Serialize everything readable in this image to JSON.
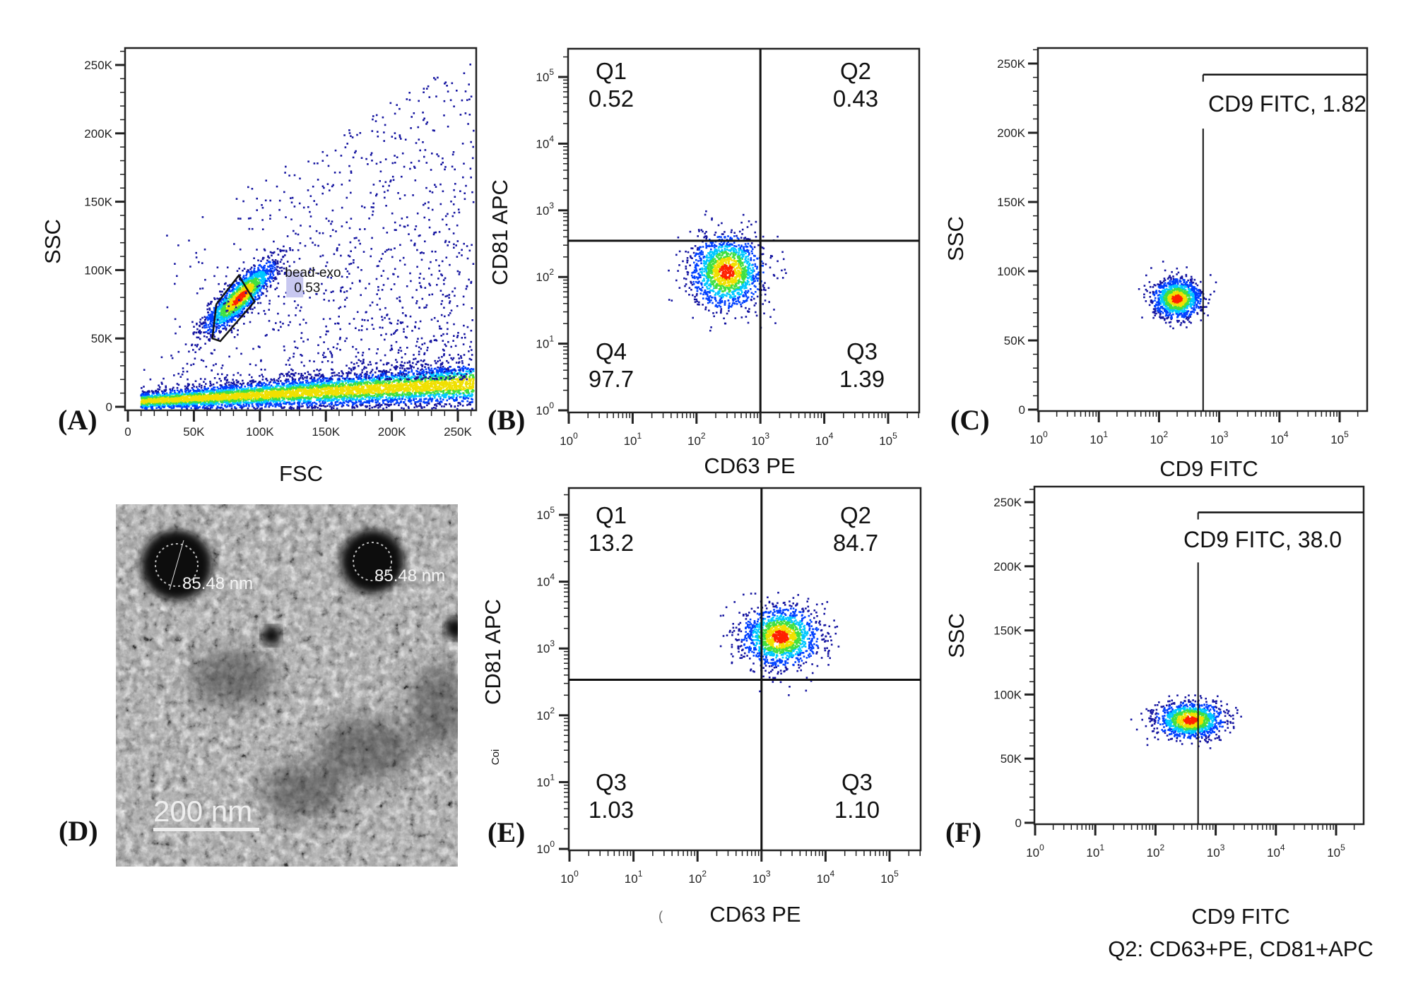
{
  "panel_labels": {
    "A": "(A)",
    "B": "(B)",
    "C": "(C)",
    "D": "(D)",
    "E": "(E)",
    "F": "(F)"
  },
  "colors": {
    "density": [
      "#1414a0",
      "#0040ff",
      "#00c8ff",
      "#40e040",
      "#f0e000",
      "#ff2000"
    ],
    "gate": "#111111",
    "gate_label_bg": "#c8c8f0"
  },
  "chart_data": [
    {
      "id": "A",
      "type": "scatter",
      "xlabel": "FSC",
      "ylabel": "SSC",
      "x_scale": "linear",
      "y_scale": "linear",
      "xlim": [
        -2000,
        264000
      ],
      "ylim": [
        -3000,
        262000
      ],
      "x_ticks": [
        {
          "v": 0,
          "label": "0"
        },
        {
          "v": 50000,
          "label": "50K"
        },
        {
          "v": 100000,
          "label": "100K"
        },
        {
          "v": 150000,
          "label": "150K"
        },
        {
          "v": 200000,
          "label": "200K"
        },
        {
          "v": 250000,
          "label": "250K"
        }
      ],
      "y_ticks": [
        {
          "v": 0,
          "label": "0"
        },
        {
          "v": 50000,
          "label": "50K"
        },
        {
          "v": 100000,
          "label": "100K"
        },
        {
          "v": 150000,
          "label": "150K"
        },
        {
          "v": 200000,
          "label": "200K"
        },
        {
          "v": 250000,
          "label": "250K"
        }
      ],
      "populations": [
        {
          "shape": "cluster",
          "x": 85000,
          "y": 80000,
          "sx": 12000,
          "sy": 11000,
          "n": 1600
        },
        {
          "shape": "band",
          "x_range": [
            10000,
            262000
          ],
          "y_start": 4000,
          "y_end": 17000,
          "spread": 6000,
          "n": 5500
        },
        {
          "shape": "scatter",
          "x_range": [
            10000,
            262000
          ],
          "y_range": [
            20000,
            258000
          ],
          "n": 1100
        }
      ],
      "gate": {
        "type": "polygon",
        "name": "bead-exo",
        "value": "0.53",
        "points": [
          [
            64000,
            50000
          ],
          [
            70000,
            48000
          ],
          [
            96000,
            77000
          ],
          [
            84000,
            96000
          ],
          [
            67000,
            75000
          ]
        ]
      }
    },
    {
      "id": "B",
      "type": "scatter",
      "xlabel": "CD63 PE",
      "ylabel": "CD81 APC",
      "x_scale": "log",
      "y_scale": "log",
      "xlim": [
        0.95,
        310000
      ],
      "ylim": [
        0.93,
        265000
      ],
      "x_ticks": [
        {
          "v": 1,
          "label": "10^0"
        },
        {
          "v": 10,
          "label": "10^1"
        },
        {
          "v": 100,
          "label": "10^2"
        },
        {
          "v": 1000,
          "label": "10^3"
        },
        {
          "v": 10000,
          "label": "10^4"
        },
        {
          "v": 100000,
          "label": "10^5"
        }
      ],
      "y_ticks": [
        {
          "v": 1,
          "label": "10^0"
        },
        {
          "v": 10,
          "label": "10^1"
        },
        {
          "v": 100,
          "label": "10^2"
        },
        {
          "v": 1000,
          "label": "10^3"
        },
        {
          "v": 10000,
          "label": "10^4"
        },
        {
          "v": 100000,
          "label": "10^5"
        }
      ],
      "populations": [
        {
          "shape": "cluster",
          "x": 300,
          "y": 120,
          "sx_decades": 0.28,
          "sy_decades": 0.27,
          "n": 1500
        }
      ],
      "gate": {
        "type": "quadrant",
        "x": 1000,
        "y": 350
      },
      "quadrants": [
        {
          "name": "Q1",
          "value": "0.52"
        },
        {
          "name": "Q2",
          "value": "0.43"
        },
        {
          "name": "Q4",
          "value": "97.7"
        },
        {
          "name": "Q3",
          "value": "1.39"
        }
      ]
    },
    {
      "id": "C",
      "type": "scatter",
      "xlabel": "CD9 FITC",
      "ylabel": "SSC",
      "x_scale": "log",
      "y_scale": "linear",
      "xlim": [
        0.95,
        250000
      ],
      "ylim": [
        -1000,
        262000
      ],
      "x_ticks": [
        {
          "v": 1,
          "label": "10^0"
        },
        {
          "v": 10,
          "label": "10^1"
        },
        {
          "v": 100,
          "label": "10^2"
        },
        {
          "v": 1000,
          "label": "10^3"
        },
        {
          "v": 10000,
          "label": "10^4"
        },
        {
          "v": 100000,
          "label": "10^5"
        }
      ],
      "y_ticks": [
        {
          "v": 0,
          "label": "0"
        },
        {
          "v": 50000,
          "label": "50K"
        },
        {
          "v": 100000,
          "label": "100K"
        },
        {
          "v": 150000,
          "label": "150K"
        },
        {
          "v": 200000,
          "label": "200K"
        },
        {
          "v": 250000,
          "label": "250K"
        }
      ],
      "populations": [
        {
          "shape": "cluster",
          "x": 200,
          "y": 80000,
          "sx_decades": 0.2,
          "sy": 7000,
          "n": 1200
        }
      ],
      "gate": {
        "type": "range",
        "x_min": 540,
        "y_top": 242000,
        "label": "CD9 FITC, 1.82"
      }
    },
    {
      "id": "E",
      "type": "scatter",
      "xlabel": "CD63 PE",
      "ylabel": "CD81 APC",
      "x_scale": "log",
      "y_scale": "log",
      "xlim": [
        0.98,
        330000
      ],
      "ylim": [
        0.99,
        300000
      ],
      "x_ticks": [
        {
          "v": 1,
          "label": "10^0"
        },
        {
          "v": 10,
          "label": "10^1"
        },
        {
          "v": 100,
          "label": "10^2"
        },
        {
          "v": 1000,
          "label": "10^3"
        },
        {
          "v": 10000,
          "label": "10^4"
        },
        {
          "v": 100000,
          "label": "10^5"
        }
      ],
      "y_ticks": [
        {
          "v": 1,
          "label": "10^0"
        },
        {
          "v": 10,
          "label": "10^1"
        },
        {
          "v": 100,
          "label": "10^2"
        },
        {
          "v": 1000,
          "label": "10^3"
        },
        {
          "v": 10000,
          "label": "10^4"
        },
        {
          "v": 100000,
          "label": "10^5"
        }
      ],
      "populations": [
        {
          "shape": "cluster",
          "x": 2000,
          "y": 1500,
          "sx_decades": 0.3,
          "sy_decades": 0.22,
          "n": 1500
        }
      ],
      "gate": {
        "type": "quadrant",
        "x": 1000,
        "y": 340
      },
      "quadrants": [
        {
          "name": "Q1",
          "value": "13.2"
        },
        {
          "name": "Q2",
          "value": "84.7"
        },
        {
          "name": "Q3",
          "value": "1.03"
        },
        {
          "name": "Q3",
          "value": "1.10"
        }
      ],
      "stray_labels": {
        "ylabel_fragment": "Coi",
        "xlabel_fragment": "("
      }
    },
    {
      "id": "F",
      "type": "scatter",
      "xlabel": "CD9 FITC",
      "ylabel": "SSC",
      "subtitle": "Q2: CD63+PE, CD81+APC",
      "x_scale": "log",
      "y_scale": "linear",
      "xlim": [
        0.98,
        260000
      ],
      "ylim": [
        -500,
        263000
      ],
      "x_ticks": [
        {
          "v": 1,
          "label": "10^0"
        },
        {
          "v": 10,
          "label": "10^1"
        },
        {
          "v": 100,
          "label": "10^2"
        },
        {
          "v": 1000,
          "label": "10^3"
        },
        {
          "v": 10000,
          "label": "10^4"
        },
        {
          "v": 100000,
          "label": "10^5"
        }
      ],
      "y_ticks": [
        {
          "v": 0,
          "label": "0"
        },
        {
          "v": 50000,
          "label": "50K"
        },
        {
          "v": 100000,
          "label": "100K"
        },
        {
          "v": 150000,
          "label": "150K"
        },
        {
          "v": 200000,
          "label": "200K"
        },
        {
          "v": 250000,
          "label": "250K"
        }
      ],
      "populations": [
        {
          "shape": "cluster",
          "x": 380,
          "y": 80000,
          "sx_decades": 0.28,
          "sy": 7000,
          "n": 1200
        }
      ],
      "gate": {
        "type": "range",
        "x_min": 510,
        "y_top": 242000,
        "label": "CD9 FITC, 38.0"
      }
    }
  ],
  "tem_image": {
    "measurement_1": "85.48 nm",
    "measurement_2": "85.48 nm",
    "scale_bar": "200 nm"
  }
}
